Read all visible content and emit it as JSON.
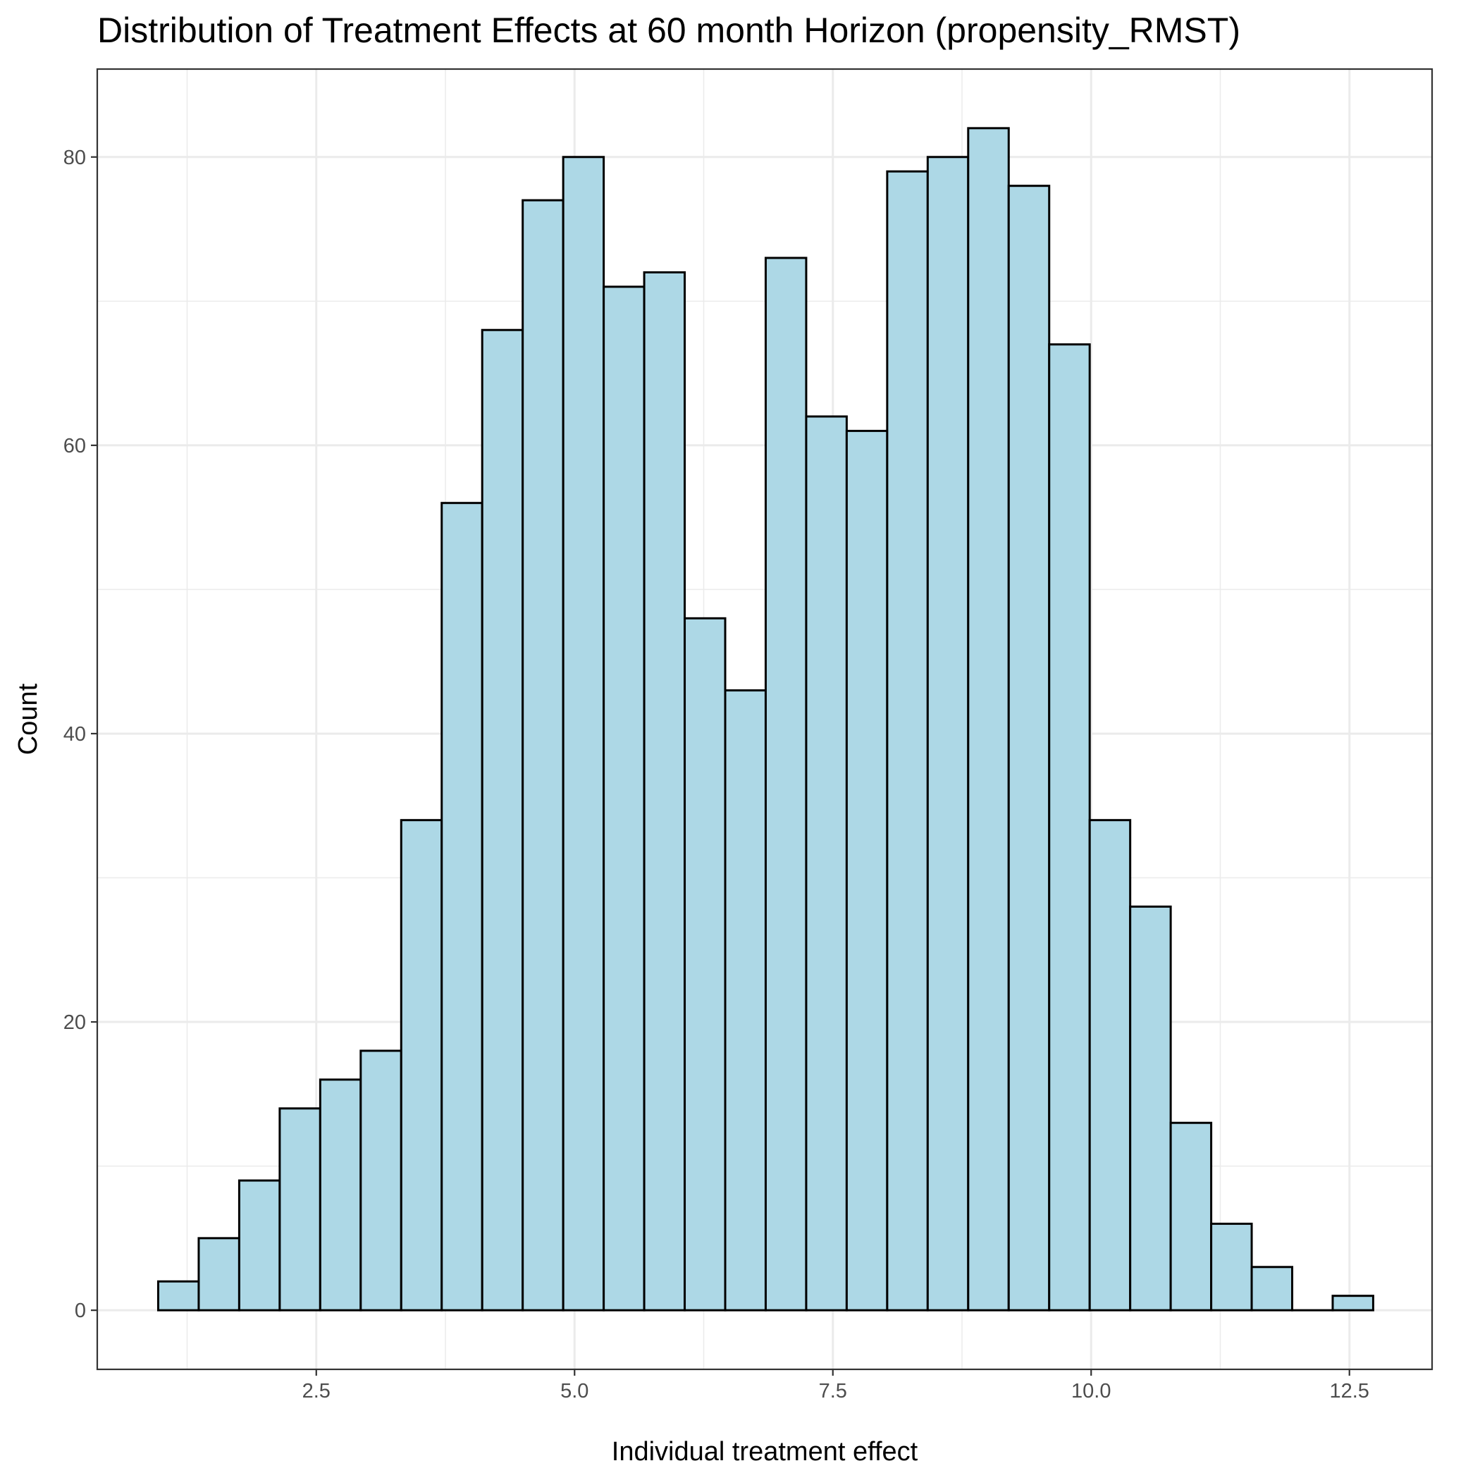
{
  "chart_data": {
    "type": "bar",
    "title": "Distribution of Treatment Effects at 60 month Horizon (propensity_RMST)",
    "xlabel": "Individual treatment effect",
    "ylabel": "Count",
    "bin_start": 0.97,
    "bin_width": 0.392,
    "counts": [
      2,
      5,
      9,
      14,
      16,
      18,
      34,
      56,
      68,
      77,
      80,
      71,
      72,
      48,
      43,
      73,
      62,
      61,
      79,
      80,
      82,
      78,
      67,
      34,
      28,
      13,
      6,
      3,
      0,
      1
    ],
    "xlim": [
      0.38,
      13.3
    ],
    "ylim": [
      -4.1,
      86.1
    ],
    "x_ticks": [
      2.5,
      5.0,
      7.5,
      10.0,
      12.5
    ],
    "x_tick_labels": [
      "2.5",
      "5.0",
      "7.5",
      "10.0",
      "12.5"
    ],
    "y_ticks": [
      0,
      20,
      40,
      60,
      80
    ],
    "y_tick_labels": [
      "0",
      "20",
      "40",
      "60",
      "80"
    ],
    "grid": true,
    "colors": {
      "bar_fill": "#add8e6",
      "bar_stroke": "#000000",
      "grid": "#ebebeb",
      "panel_border": "#333333"
    }
  }
}
